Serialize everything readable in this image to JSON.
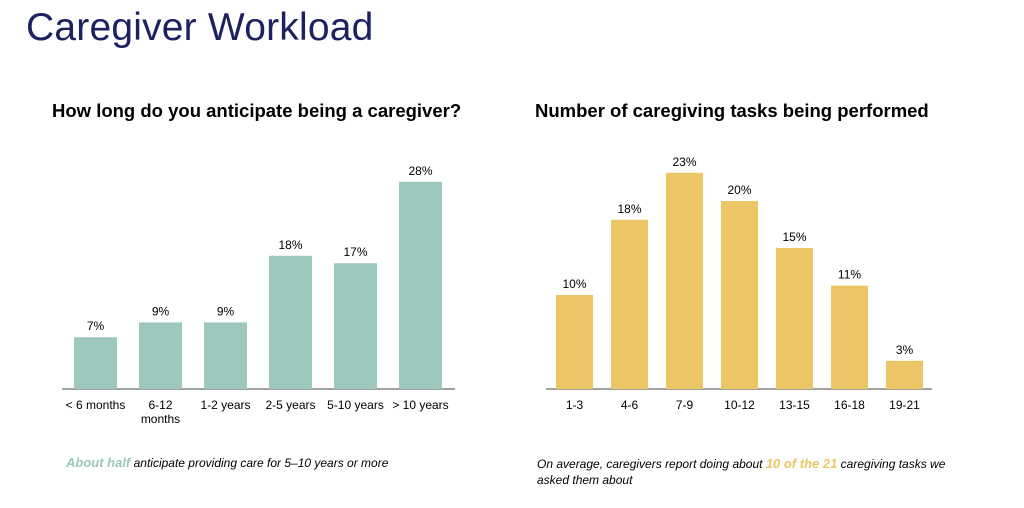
{
  "page": {
    "title": "Caregiver Workload"
  },
  "colors": {
    "title": "#1c2260",
    "teal": "#9dc8bd",
    "gold": "#ecc566"
  },
  "notes": {
    "left": {
      "highlight": "About half",
      "text": " anticipate providing care for 5–10 years or more"
    },
    "right": {
      "prefix": "On average, caregivers report doing about ",
      "highlight": "10 of the 21",
      "suffix": " caregiving tasks we asked them about"
    }
  },
  "chart_data": [
    {
      "type": "bar",
      "title": "How long do you anticipate being a caregiver?",
      "categories": [
        "< 6 months",
        "6-12 months",
        "1-2 years",
        "2-5 years",
        "5-10 years",
        "> 10 years"
      ],
      "tick_lines": [
        [
          "< 6 months"
        ],
        [
          "6-12",
          "months"
        ],
        [
          "1-2 years"
        ],
        [
          "2-5 years"
        ],
        [
          "5-10 years"
        ],
        [
          "> 10 years"
        ]
      ],
      "values": [
        7,
        9,
        9,
        18,
        17,
        28
      ],
      "data_labels": [
        "7%",
        "9%",
        "9%",
        "18%",
        "17%",
        "28%"
      ],
      "unit": "%",
      "color": "#9dc8bd",
      "xlabel": "",
      "ylabel": "",
      "grid": false
    },
    {
      "type": "bar",
      "title": "Number of caregiving tasks being performed",
      "categories": [
        "1-3",
        "4-6",
        "7-9",
        "10-12",
        "13-15",
        "16-18",
        "19-21"
      ],
      "tick_lines": [
        [
          "1-3"
        ],
        [
          "4-6"
        ],
        [
          "7-9"
        ],
        [
          "10-12"
        ],
        [
          "13-15"
        ],
        [
          "16-18"
        ],
        [
          "19-21"
        ]
      ],
      "values": [
        10,
        18,
        23,
        20,
        15,
        11,
        3
      ],
      "data_labels": [
        "10%",
        "18%",
        "23%",
        "20%",
        "15%",
        "11%",
        "3%"
      ],
      "unit": "%",
      "color": "#ecc566",
      "xlabel": "",
      "ylabel": "",
      "grid": false
    }
  ]
}
